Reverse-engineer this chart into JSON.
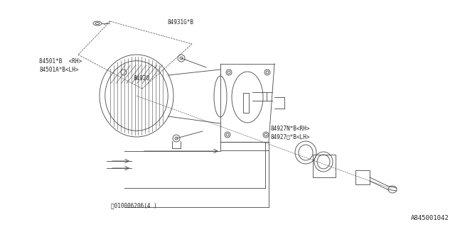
{
  "bg_color": "#ffffff",
  "line_color": "#444444",
  "label_color": "#222222",
  "fig_width": 6.4,
  "fig_height": 3.2,
  "dpi": 100,
  "labels": {
    "part_84931": "84931G*B",
    "part_84501_rh": "84501*B  <RH>",
    "part_84501_lh": "84501A*B<LH>",
    "part_84920": "84920",
    "part_84927_rh": "84927N*B<RH>",
    "part_84927_lh": "84927□*B<LH>",
    "part_bolt": "Ⓑ010006206(4 )",
    "diagram_id": "A845001042"
  },
  "font_size_label": 5.5,
  "font_size_id": 6.5,
  "lw": 0.6
}
